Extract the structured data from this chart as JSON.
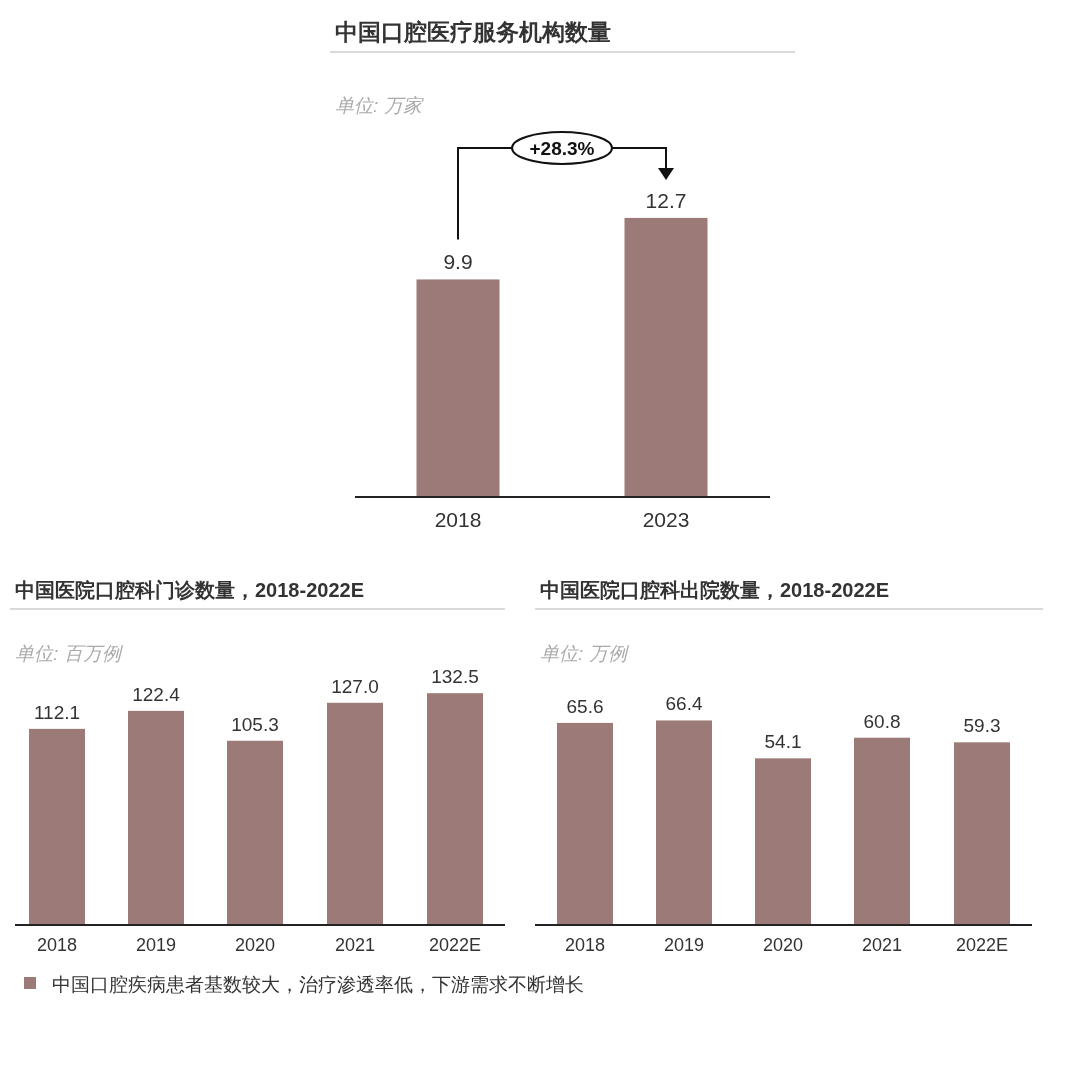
{
  "chart_data": [
    {
      "type": "bar",
      "title": "中国口腔医疗服务机构数量",
      "subtitle": "单位:  万家",
      "categories": [
        "2018",
        "2023"
      ],
      "values": [
        9.9,
        12.7
      ],
      "color": "#9c7a78",
      "data_labels": true,
      "annotations": [
        "+28.3%"
      ]
    },
    {
      "type": "bar",
      "title": "中国医院口腔科门诊数量，2018-2022E",
      "subtitle": "单位:  百万例",
      "categories": [
        "2018",
        "2019",
        "2020",
        "2021",
        "2022E"
      ],
      "values": [
        112.1,
        122.4,
        105.3,
        127.0,
        132.5
      ],
      "value_labels": [
        "112.1",
        "122.4",
        "105.3",
        "127.0",
        "132.5"
      ],
      "color": "#9c7a78",
      "annotations": [
        "中国口腔疾病患者基数较大，治疗渗透率低，下游需求不断增长"
      ]
    },
    {
      "type": "bar",
      "title": "中国医院口腔科出院数量，2018-2022E",
      "subtitle": "单位:  万例",
      "categories": [
        "2018",
        "2019",
        "2020",
        "2021",
        "2022E"
      ],
      "values": [
        65.6,
        66.4,
        54.1,
        60.8,
        59.3
      ],
      "color": "#9c7a78",
      "data_labels": true
    }
  ]
}
